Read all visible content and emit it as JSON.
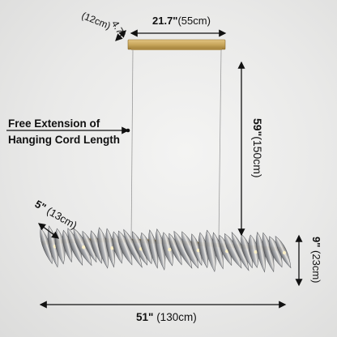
{
  "dimensions": {
    "canopy_length": {
      "inch": "21.7\"",
      "cm": "(55cm)"
    },
    "canopy_width": {
      "inch": "4.7\"",
      "cm": "(12cm)"
    },
    "cord_length": {
      "inch": "59\"",
      "cm": "(150cm)"
    },
    "crystal_depth": {
      "inch": "5\"",
      "cm": "(13cm)"
    },
    "body_height": {
      "inch": "9\"",
      "cm": "(23cm)"
    },
    "body_length": {
      "inch": "51\"",
      "cm": "(130cm)"
    }
  },
  "note": {
    "line1": "Free Extension of",
    "line2": "Hanging Cord Length"
  },
  "colors": {
    "canopy": "#c9a75c",
    "crystal": "#8d8f93",
    "dimension_line": "#111111"
  }
}
